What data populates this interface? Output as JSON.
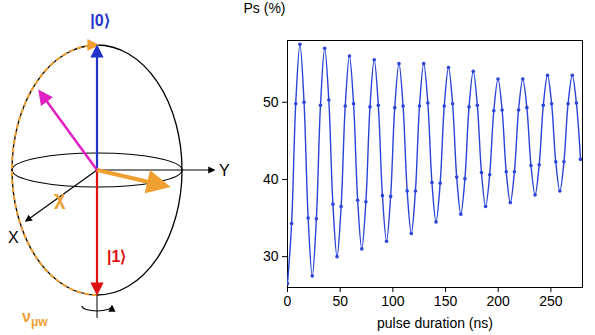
{
  "chart_data": {
    "type": "line",
    "x_label": "pulse duration (ns)",
    "y_label": "Ps (%)",
    "x": [
      0,
      3.9,
      7.8,
      11.8,
      15.7,
      19.6,
      23.5,
      27.4,
      31.3,
      35.3,
      39.2,
      43.1,
      47,
      50.9,
      54.8,
      58.8,
      62.7,
      66.6,
      70.5,
      74.4,
      78.3,
      82.3,
      86.2,
      90.1,
      94,
      97.9,
      101.8,
      105.8,
      109.7,
      113.6,
      117.5,
      121.4,
      125.3,
      129.3,
      133.2,
      137.1,
      141,
      144.9,
      148.8,
      152.8,
      156.7,
      160.6,
      164.5,
      168.4,
      172.3,
      176.3,
      180.2,
      184.1,
      188,
      191.9,
      195.8,
      199.8,
      203.7,
      207.6,
      211.5,
      215.4,
      219.3,
      223.3,
      227.2,
      231.1,
      235,
      238.9,
      242.8,
      246.8,
      250.7,
      254.6,
      258.5,
      262.4,
      266.3,
      270.3,
      274.2,
      278.1
    ],
    "values": [
      26.5,
      34.3,
      49.8,
      57.5,
      50,
      35,
      27.5,
      34.9,
      49.6,
      57,
      50.3,
      36.8,
      30,
      36.5,
      49.5,
      56,
      49.8,
      37.3,
      31,
      37.1,
      49.4,
      55.5,
      49.6,
      37.9,
      32,
      37.8,
      49.3,
      55,
      49.5,
      38.5,
      33,
      38.5,
      49.5,
      55,
      49.9,
      39.6,
      34.5,
      39.5,
      49.5,
      54.5,
      49.8,
      40.3,
      35.5,
      40.1,
      49.4,
      54,
      49.6,
      40.9,
      36.5,
      40.6,
      48.9,
      53,
      49,
      41,
      37,
      41,
      49,
      53,
      49.3,
      41.8,
      38,
      41.9,
      49.6,
      53.5,
      49.8,
      42.3,
      38.5,
      42.3,
      49.8,
      53.5,
      49.9,
      42.6
    ],
    "color": "#2a44d8",
    "marker": "circle",
    "xlim": [
      0,
      280
    ],
    "xticks": [
      0,
      50,
      100,
      150,
      200,
      250
    ],
    "ylim": [
      26,
      58
    ],
    "yticks": [
      30,
      40,
      50
    ],
    "grid": false
  },
  "diagram": {
    "labels": {
      "zero": "|0⟩",
      "one": "|1⟩",
      "x_axis": "X",
      "y_axis": "Y",
      "angle": "χ",
      "frequency": {
        "text": "ν",
        "subscript": "μw"
      }
    }
  }
}
